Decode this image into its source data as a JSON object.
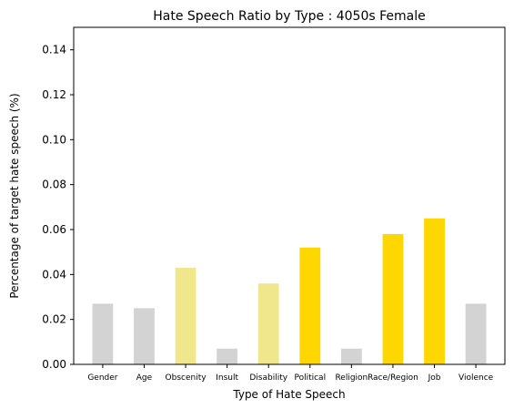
{
  "chart_data": {
    "type": "bar",
    "title": "Hate Speech Ratio by Type : 4050s Female",
    "xlabel": "Type of Hate Speech",
    "ylabel": "Percentage of target hate speech (%)",
    "categories": [
      "Gender",
      "Age",
      "Obscenity",
      "Insult",
      "Disability",
      "Political",
      "Religion",
      "Race/Region",
      "Job",
      "Violence"
    ],
    "values": [
      0.027,
      0.025,
      0.043,
      0.007,
      0.036,
      0.052,
      0.007,
      0.058,
      0.065,
      0.027
    ],
    "bar_colors": [
      "#d3d3d3",
      "#d3d3d3",
      "#f0e68c",
      "#d3d3d3",
      "#f0e68c",
      "#ffd700",
      "#d3d3d3",
      "#ffd700",
      "#ffd700",
      "#d3d3d3"
    ],
    "ylim": [
      0,
      0.15
    ],
    "yticks": [
      "0.00",
      "0.02",
      "0.04",
      "0.06",
      "0.08",
      "0.10",
      "0.12",
      "0.14"
    ],
    "grid": false,
    "legend": "none"
  }
}
